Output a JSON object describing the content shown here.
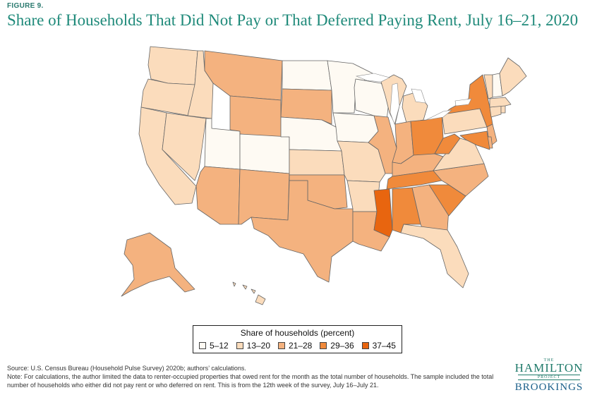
{
  "figure_label": "FIGURE 9.",
  "title": "Share of Households That Did Not Pay or That Deferred Paying Rent, July 16–21, 2020",
  "legend": {
    "title": "Share of households (percent)",
    "items": [
      {
        "label": "5–12",
        "color": "#fefaf3"
      },
      {
        "label": "13–20",
        "color": "#fbdcbc"
      },
      {
        "label": "21–28",
        "color": "#f4b27f"
      },
      {
        "label": "29–36",
        "color": "#f08a3b"
      },
      {
        "label": "37–45",
        "color": "#e8650f"
      }
    ]
  },
  "states": [
    {
      "name": "WA",
      "bin": 1
    },
    {
      "name": "OR",
      "bin": 1
    },
    {
      "name": "CA",
      "bin": 1
    },
    {
      "name": "ID",
      "bin": 1
    },
    {
      "name": "NV",
      "bin": 1
    },
    {
      "name": "UT",
      "bin": 0
    },
    {
      "name": "AZ",
      "bin": 2
    },
    {
      "name": "MT",
      "bin": 2
    },
    {
      "name": "WY",
      "bin": 2
    },
    {
      "name": "CO",
      "bin": 0
    },
    {
      "name": "NM",
      "bin": 2
    },
    {
      "name": "ND",
      "bin": 0
    },
    {
      "name": "SD",
      "bin": 2
    },
    {
      "name": "NE",
      "bin": 0
    },
    {
      "name": "KS",
      "bin": 1
    },
    {
      "name": "OK",
      "bin": 2
    },
    {
      "name": "TX",
      "bin": 2
    },
    {
      "name": "MN",
      "bin": 0
    },
    {
      "name": "IA",
      "bin": 0
    },
    {
      "name": "MO",
      "bin": 1
    },
    {
      "name": "AR",
      "bin": 1
    },
    {
      "name": "LA",
      "bin": 2
    },
    {
      "name": "WI",
      "bin": 0
    },
    {
      "name": "IL",
      "bin": 2
    },
    {
      "name": "MI",
      "bin": 1
    },
    {
      "name": "IN",
      "bin": 2
    },
    {
      "name": "OH",
      "bin": 3
    },
    {
      "name": "KY",
      "bin": 2
    },
    {
      "name": "TN",
      "bin": 3
    },
    {
      "name": "MS",
      "bin": 4
    },
    {
      "name": "AL",
      "bin": 3
    },
    {
      "name": "GA",
      "bin": 2
    },
    {
      "name": "FL",
      "bin": 1
    },
    {
      "name": "SC",
      "bin": 3
    },
    {
      "name": "NC",
      "bin": 2
    },
    {
      "name": "VA",
      "bin": 1
    },
    {
      "name": "WV",
      "bin": 3
    },
    {
      "name": "PA",
      "bin": 1
    },
    {
      "name": "NY",
      "bin": 3
    },
    {
      "name": "NJ",
      "bin": 2
    },
    {
      "name": "DE",
      "bin": 2
    },
    {
      "name": "MD",
      "bin": 3
    },
    {
      "name": "CT",
      "bin": 1
    },
    {
      "name": "RI",
      "bin": 1
    },
    {
      "name": "MA",
      "bin": 1
    },
    {
      "name": "VT",
      "bin": 1
    },
    {
      "name": "NH",
      "bin": 0
    },
    {
      "name": "ME",
      "bin": 1
    },
    {
      "name": "AK",
      "bin": 2
    },
    {
      "name": "HI",
      "bin": 1
    }
  ],
  "source": "Source: U.S. Census Bureau (Household Pulse Survey) 2020b; authors’ calculations.",
  "note": "Note: For calculations, the author limited the data to renter-occupied properties that owed rent for the month as the total number of households. The sample included the total number of households who either did not pay rent or who deferred on rent. This is from the 12th week of the survey, July 16–July 21.",
  "logo": {
    "the": "THE",
    "hamilton": "HAMILTON",
    "project": "PROJECT",
    "brookings": "BROOKINGS"
  }
}
